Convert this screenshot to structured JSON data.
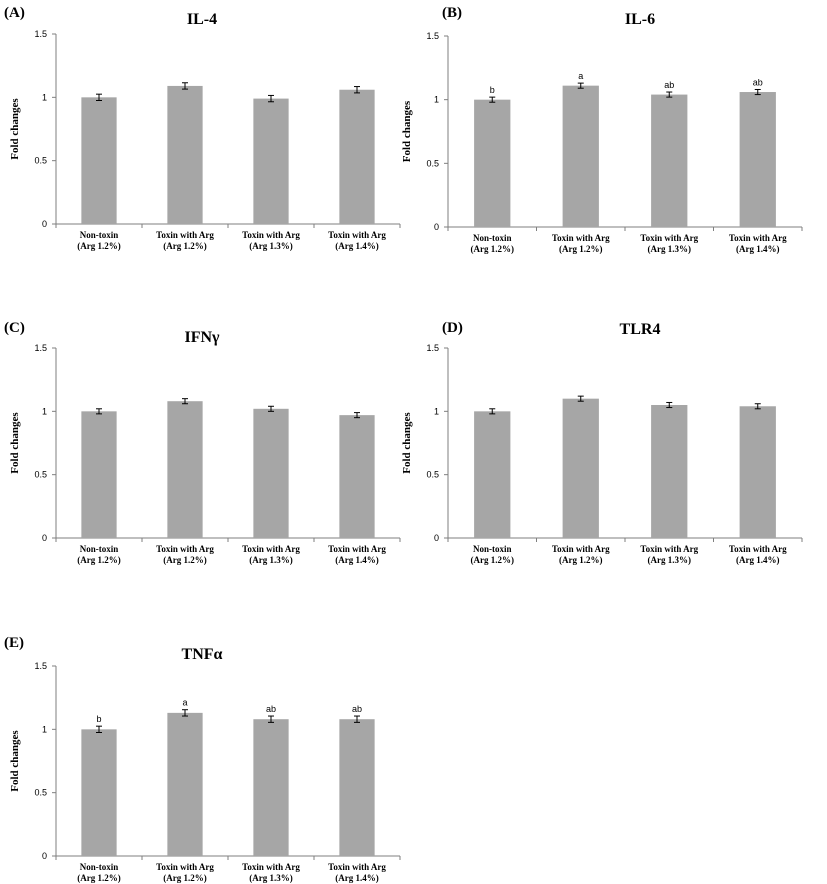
{
  "chart_data": [
    {
      "type": "bar",
      "panel_label": "(A)",
      "title": "IL-4",
      "ylabel": "Fold changes",
      "ylim": [
        0,
        1.5
      ],
      "yticks": [
        "0",
        "0.5",
        "1",
        "1.5"
      ],
      "categories": [
        [
          "Non-toxin",
          "(Arg 1.2%)"
        ],
        [
          "Toxin with Arg",
          "(Arg 1.2%)"
        ],
        [
          "Toxin with Arg",
          "(Arg 1.3%)"
        ],
        [
          "Toxin with Arg",
          "(Arg 1.4%)"
        ]
      ],
      "values": [
        1.0,
        1.09,
        0.99,
        1.06
      ],
      "errors": [
        0.025,
        0.025,
        0.025,
        0.025
      ],
      "significance": [],
      "bar_color": "#a6a6a6"
    },
    {
      "type": "bar",
      "panel_label": "(B)",
      "title": "IL-6",
      "ylabel": "Fold changes",
      "ylim": [
        0,
        1.5
      ],
      "yticks": [
        "0",
        "0.5",
        "1",
        "1.5"
      ],
      "categories": [
        [
          "Non-toxin",
          "(Arg 1.2%)"
        ],
        [
          "Toxin with Arg",
          "(Arg 1.2%)"
        ],
        [
          "Toxin with Arg",
          "(Arg 1.3%)"
        ],
        [
          "Toxin with Arg",
          "(Arg 1.4%)"
        ]
      ],
      "values": [
        1.0,
        1.11,
        1.04,
        1.06
      ],
      "errors": [
        0.02,
        0.02,
        0.02,
        0.02
      ],
      "significance": [
        "b",
        "a",
        "ab",
        "ab"
      ],
      "bar_color": "#a6a6a6"
    },
    {
      "type": "bar",
      "panel_label": "(C)",
      "title": "IFNγ",
      "ylabel": "Fold changes",
      "ylim": [
        0,
        1.5
      ],
      "yticks": [
        "0",
        "0.5",
        "1",
        "1.5"
      ],
      "categories": [
        [
          "Non-toxin",
          "(Arg 1.2%)"
        ],
        [
          "Toxin with Arg",
          "(Arg 1.2%)"
        ],
        [
          "Toxin with Arg",
          "(Arg 1.3%)"
        ],
        [
          "Toxin with Arg",
          "(Arg 1.4%)"
        ]
      ],
      "values": [
        1.0,
        1.08,
        1.02,
        0.97
      ],
      "errors": [
        0.02,
        0.02,
        0.02,
        0.02
      ],
      "significance": [],
      "bar_color": "#a6a6a6"
    },
    {
      "type": "bar",
      "panel_label": "(D)",
      "title": "TLR4",
      "ylabel": "Fold changes",
      "ylim": [
        0,
        1.5
      ],
      "yticks": [
        "0",
        "0.5",
        "1",
        "1.5"
      ],
      "categories": [
        [
          "Non-toxin",
          "(Arg 1.2%)"
        ],
        [
          "Toxin with Arg",
          "(Arg 1.2%)"
        ],
        [
          "Toxin with Arg",
          "(Arg 1.3%)"
        ],
        [
          "Toxin with Arg",
          "(Arg 1.4%)"
        ]
      ],
      "values": [
        1.0,
        1.1,
        1.05,
        1.04
      ],
      "errors": [
        0.02,
        0.02,
        0.02,
        0.02
      ],
      "significance": [],
      "bar_color": "#a6a6a6"
    },
    {
      "type": "bar",
      "panel_label": "(E)",
      "title": "TNFα",
      "ylabel": "Fold changes",
      "ylim": [
        0,
        1.5
      ],
      "yticks": [
        "0",
        "0.5",
        "1",
        "1.5"
      ],
      "categories": [
        [
          "Non-toxin",
          "(Arg 1.2%)"
        ],
        [
          "Toxin with Arg",
          "(Arg 1.2%)"
        ],
        [
          "Toxin with Arg",
          "(Arg 1.3%)"
        ],
        [
          "Toxin with Arg",
          "(Arg 1.4%)"
        ]
      ],
      "values": [
        1.0,
        1.13,
        1.08,
        1.08
      ],
      "errors": [
        0.025,
        0.025,
        0.025,
        0.025
      ],
      "significance": [
        "b",
        "a",
        "ab",
        "ab"
      ],
      "bar_color": "#a6a6a6"
    }
  ]
}
